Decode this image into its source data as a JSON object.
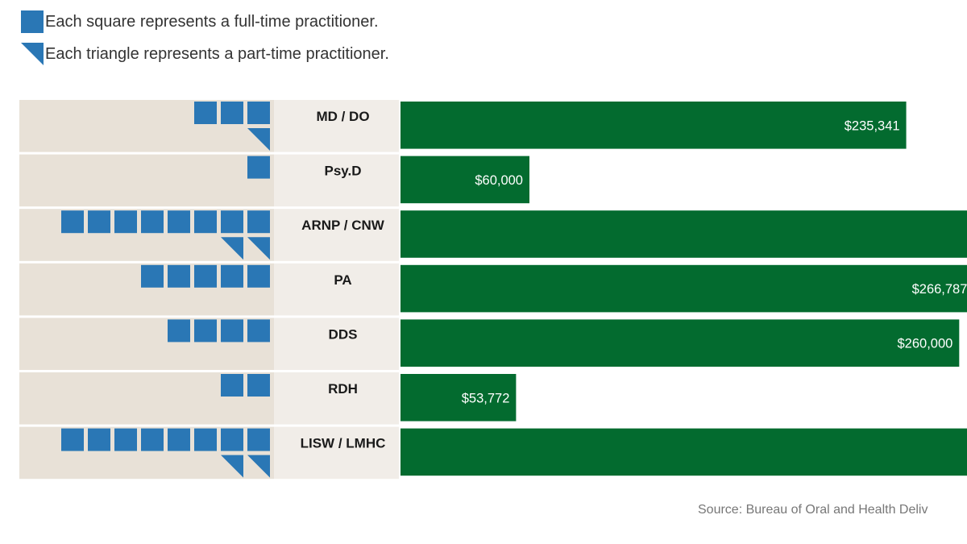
{
  "legend": {
    "square_label": "Each square represents a full-time practitioner.",
    "triangle_label": "Each triangle represents a part-time practitioner."
  },
  "source_text": "Source: Bureau of Oral and Health Deliv",
  "colors": {
    "practitioner_icon": "#2a77b5",
    "bar": "#036b2f",
    "panel_background": "#e8e1d7",
    "label_background": "#f1ede8"
  },
  "chart_data": {
    "type": "bar",
    "orientation": "horizontal",
    "categories": [
      "MD / DO",
      "Psy.D",
      "ARNP / CNW",
      "PA",
      "DDS",
      "RDH",
      "LISW / LMHC"
    ],
    "full_time_practitioners": [
      3,
      1,
      8,
      5,
      4,
      2,
      8
    ],
    "part_time_practitioners": [
      1,
      0,
      2,
      0,
      0,
      0,
      2
    ],
    "values": [
      235341,
      60000,
      270000,
      266787,
      260000,
      53772,
      270000
    ],
    "value_labels": [
      "$235,341",
      "$60,000",
      "",
      "$266,787",
      "$260,000",
      "$53,772",
      ""
    ],
    "xlim": [
      0,
      270000
    ]
  }
}
